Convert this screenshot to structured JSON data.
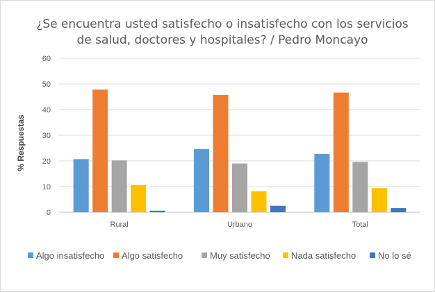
{
  "chart_data": {
    "type": "bar",
    "title": "¿Se encuentra usted satisfecho o insatisfecho con los servicios de salud, doctores y hospitales? / Pedro Moncayo",
    "title_lines": [
      "¿Se encuentra usted satisfecho o insatisfecho con los servicios",
      "de salud, doctores y hospitales? / Pedro Moncayo"
    ],
    "xlabel": "",
    "ylabel": "% Respuestas",
    "ylim": [
      0,
      60
    ],
    "yticks": [
      0,
      10,
      20,
      30,
      40,
      50,
      60
    ],
    "grid": true,
    "legend_position": "bottom",
    "categories": [
      "Rural",
      "Urbano",
      "Total"
    ],
    "series": [
      {
        "name": "Algo insatisfecho",
        "color": "#5b9bd5",
        "values": [
          20.7,
          24.6,
          22.7
        ]
      },
      {
        "name": "Algo satisfecho",
        "color": "#ed7d31",
        "values": [
          47.8,
          45.7,
          46.6
        ]
      },
      {
        "name": "Muy satisfecho",
        "color": "#a5a5a5",
        "values": [
          20.2,
          19.0,
          19.6
        ]
      },
      {
        "name": "Nada satisfecho",
        "color": "#ffc000",
        "values": [
          10.6,
          8.2,
          9.4
        ]
      },
      {
        "name": "No lo sé",
        "color": "#4472c4",
        "values": [
          0.6,
          2.5,
          1.6
        ]
      }
    ]
  }
}
